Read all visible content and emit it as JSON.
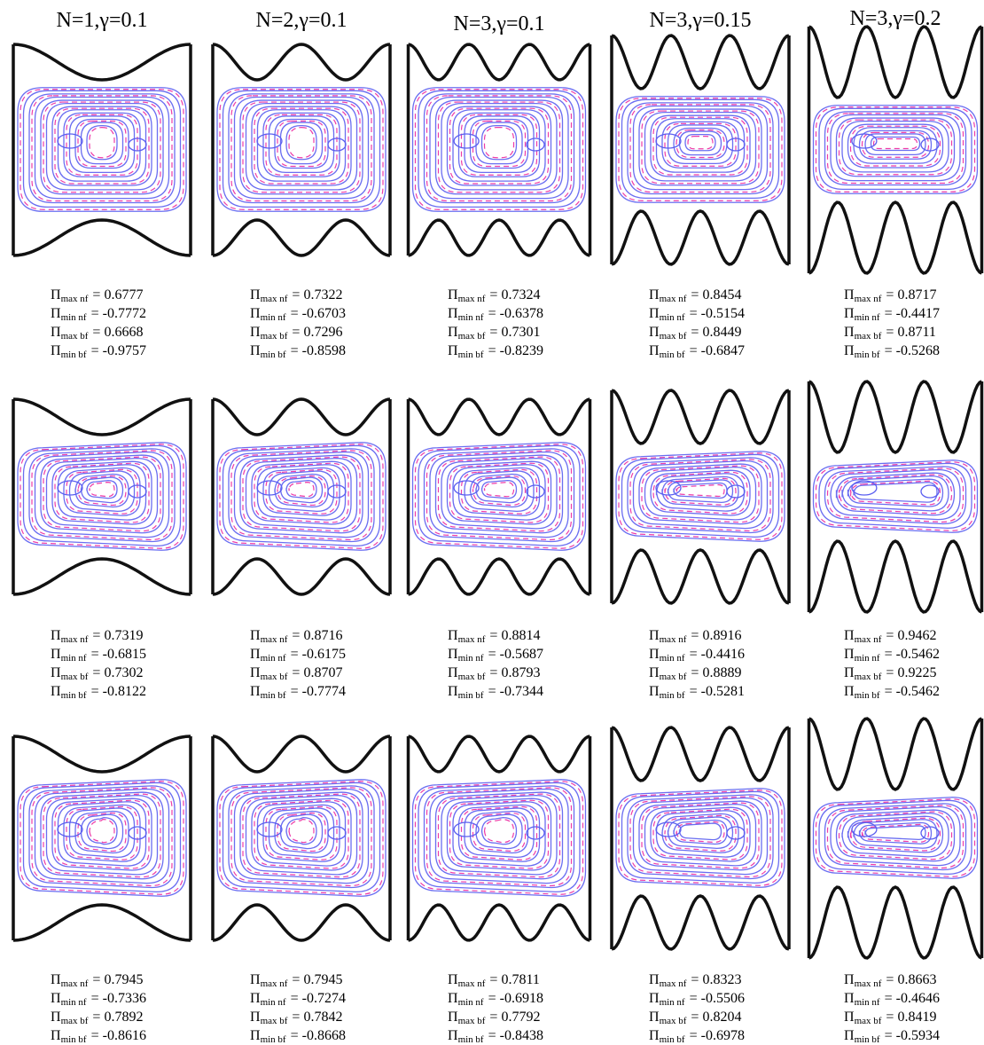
{
  "column_titles": [
    "N=1,γ=0.1",
    "N=2,γ=0.1",
    "N=3,γ=0.1",
    "N=3,γ=0.15",
    "N=3,γ=0.2"
  ],
  "symbol": "Π",
  "equals": "=",
  "quantities": [
    "max nf",
    "min nf",
    "max bf",
    "min bf"
  ],
  "rows": [
    [
      [
        0.6777,
        -0.7772,
        0.6668,
        -0.9757
      ],
      [
        0.7322,
        -0.6703,
        0.7296,
        -0.8598
      ],
      [
        0.7324,
        -0.6378,
        0.7301,
        -0.8239
      ],
      [
        0.8454,
        -0.5154,
        0.8449,
        -0.6847
      ],
      [
        0.8717,
        -0.4417,
        0.8711,
        -0.5268
      ]
    ],
    [
      [
        0.7319,
        -0.6815,
        0.7302,
        -0.8122
      ],
      [
        0.8716,
        -0.6175,
        0.8707,
        -0.7774
      ],
      [
        0.8814,
        -0.5687,
        0.8793,
        -0.7344
      ],
      [
        0.8916,
        -0.4416,
        0.8889,
        -0.5281
      ],
      [
        0.9462,
        -0.5462,
        0.9225,
        -0.5462
      ]
    ],
    [
      [
        0.7945,
        -0.7336,
        0.7892,
        -0.8616
      ],
      [
        0.7945,
        -0.7274,
        0.7842,
        -0.8668
      ],
      [
        0.7811,
        -0.6918,
        0.7792,
        -0.8438
      ],
      [
        0.8323,
        -0.5506,
        0.8204,
        -0.6978
      ],
      [
        0.8663,
        -0.4646,
        0.8419,
        -0.5934
      ]
    ]
  ]
}
